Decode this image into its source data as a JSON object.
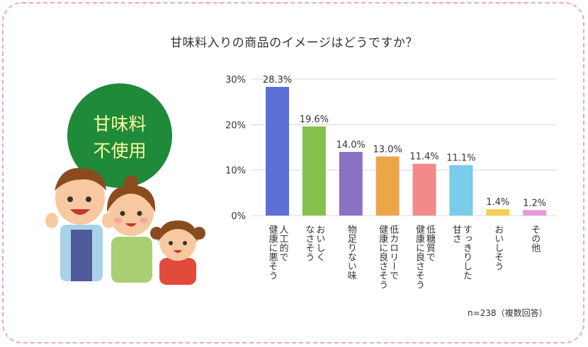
{
  "chart_data": {
    "type": "bar",
    "title": "甘味料入りの商品のイメージはどうですか？",
    "categories": [
      "人工的で\n健康に悪そう",
      "おいしく\nなさそう",
      "物足りない味",
      "低カロリーで\n健康に良さそう",
      "低糖質で\n健康に良さそう",
      "すっきりした\n甘さ",
      "おいしそう",
      "その他"
    ],
    "values": [
      28.3,
      19.6,
      14.0,
      13.0,
      11.4,
      11.1,
      1.4,
      1.2
    ],
    "value_labels": [
      "28.3%",
      "19.6%",
      "14.0%",
      "13.0%",
      "11.4%",
      "11.1%",
      "1.4%",
      "1.2%"
    ],
    "colors": [
      "#5b6fd6",
      "#84c14e",
      "#8a72c2",
      "#eca64a",
      "#f28a8a",
      "#7bcbea",
      "#f6cf55",
      "#ea9ad5"
    ],
    "yticks": [
      "30%",
      "20%",
      "10%",
      "0%"
    ],
    "ylim": [
      0,
      30
    ],
    "grid": true,
    "note": "n=238（複数回答）"
  },
  "badge": {
    "line1": "甘味料",
    "line2": "不使用"
  }
}
